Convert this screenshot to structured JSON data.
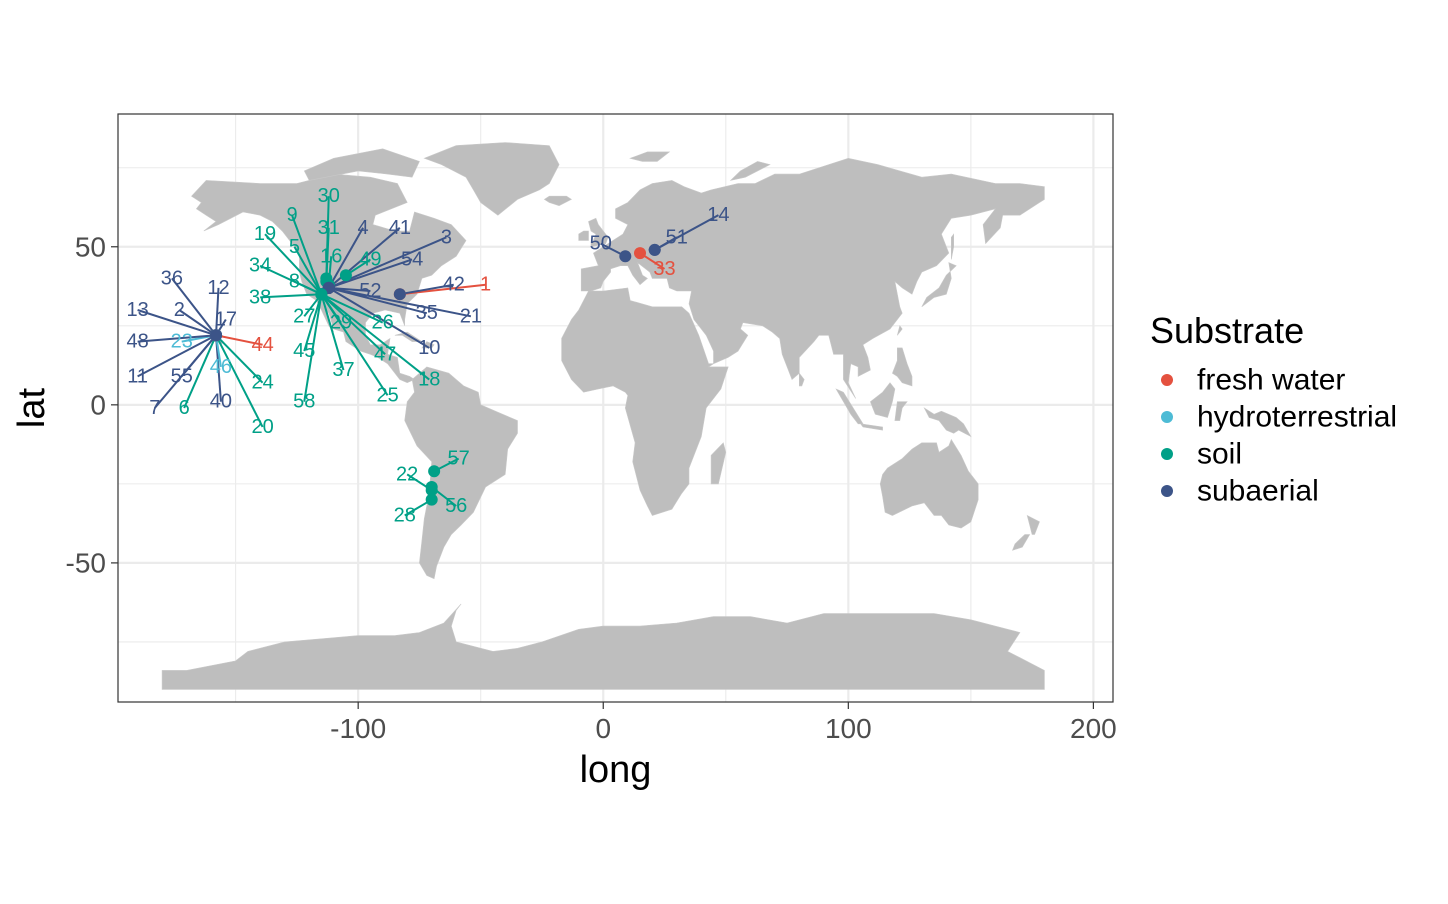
{
  "chart_data": {
    "type": "scatter",
    "title": "",
    "xlabel": "long",
    "ylabel": "lat",
    "xlim": [
      -198,
      208
    ],
    "ylim": [
      -94,
      92
    ],
    "xticks": [
      -100,
      0,
      100,
      200
    ],
    "yticks": [
      -50,
      0,
      50
    ],
    "xtick_labels": [
      "-100",
      "0",
      "100",
      "200"
    ],
    "ytick_labels": [
      "-50",
      "0",
      "50"
    ],
    "grid": true,
    "background": "world map",
    "legend": {
      "title": "Substrate",
      "position": "right",
      "entries": [
        {
          "label": "fresh water",
          "color": "#E4513F"
        },
        {
          "label": "hydroterrestrial",
          "color": "#4DBBD5"
        },
        {
          "label": "soil",
          "color": "#00A087"
        },
        {
          "label": "subaerial",
          "color": "#3C5488"
        }
      ]
    },
    "colors": {
      "fresh water": "#E4513F",
      "hydroterrestrial": "#4DBBD5",
      "soil": "#00A087",
      "subaerial": "#3C5488",
      "land": "#BEBEBE",
      "panel_border": "#333333",
      "grid": "#EBEBEB"
    },
    "points": [
      {
        "id": "1",
        "long": -83,
        "lat": 35,
        "substrate": "fresh water",
        "label_long": -48,
        "label_lat": 38
      },
      {
        "id": "2",
        "long": -158,
        "lat": 22,
        "substrate": "subaerial",
        "label_long": -173,
        "label_lat": 30
      },
      {
        "id": "3",
        "long": -112,
        "lat": 37,
        "substrate": "subaerial",
        "label_long": -64,
        "label_lat": 53
      },
      {
        "id": "4",
        "long": -112,
        "lat": 37,
        "substrate": "subaerial",
        "label_long": -98,
        "label_lat": 56
      },
      {
        "id": "5",
        "long": -115,
        "lat": 35,
        "substrate": "soil",
        "label_long": -126,
        "label_lat": 50
      },
      {
        "id": "6",
        "long": -158,
        "lat": 22,
        "substrate": "soil",
        "label_long": -171,
        "label_lat": -1
      },
      {
        "id": "7",
        "long": -158,
        "lat": 22,
        "substrate": "subaerial",
        "label_long": -183,
        "label_lat": -1
      },
      {
        "id": "8",
        "long": -115,
        "lat": 35,
        "substrate": "soil",
        "label_long": -126,
        "label_lat": 39
      },
      {
        "id": "9",
        "long": -115,
        "lat": 35,
        "substrate": "soil",
        "label_long": -127,
        "label_lat": 60
      },
      {
        "id": "10",
        "long": -112,
        "lat": 37,
        "substrate": "subaerial",
        "label_long": -71,
        "label_lat": 18
      },
      {
        "id": "11",
        "long": -158,
        "lat": 22,
        "substrate": "subaerial",
        "label_long": -190,
        "label_lat": 9
      },
      {
        "id": "12",
        "long": -158,
        "lat": 22,
        "substrate": "subaerial",
        "label_long": -157,
        "label_lat": 37
      },
      {
        "id": "13",
        "long": -158,
        "lat": 22,
        "substrate": "subaerial",
        "label_long": -190,
        "label_lat": 30
      },
      {
        "id": "14",
        "long": 21,
        "lat": 49,
        "substrate": "subaerial",
        "label_long": 47,
        "label_lat": 60
      },
      {
        "id": "16",
        "long": -112,
        "lat": 38,
        "substrate": "soil",
        "label_long": -111,
        "label_lat": 47
      },
      {
        "id": "17",
        "long": -158,
        "lat": 22,
        "substrate": "subaerial",
        "label_long": -154,
        "label_lat": 27
      },
      {
        "id": "18",
        "long": -115,
        "lat": 35,
        "substrate": "soil",
        "label_long": -71,
        "label_lat": 8
      },
      {
        "id": "19",
        "long": -115,
        "lat": 35,
        "substrate": "soil",
        "label_long": -138,
        "label_lat": 54
      },
      {
        "id": "20",
        "long": -158,
        "lat": 22,
        "substrate": "soil",
        "label_long": -139,
        "label_lat": -7
      },
      {
        "id": "21",
        "long": -112,
        "lat": 37,
        "substrate": "subaerial",
        "label_long": -54,
        "label_lat": 28
      },
      {
        "id": "22",
        "long": -70,
        "lat": -27,
        "substrate": "soil",
        "label_long": -80,
        "label_lat": -22
      },
      {
        "id": "23",
        "long": -158,
        "lat": 22,
        "substrate": "hydroterrestrial",
        "label_long": -172,
        "label_lat": 20
      },
      {
        "id": "24",
        "long": -158,
        "lat": 22,
        "substrate": "soil",
        "label_long": -139,
        "label_lat": 7
      },
      {
        "id": "25",
        "long": -115,
        "lat": 35,
        "substrate": "soil",
        "label_long": -88,
        "label_lat": 3
      },
      {
        "id": "26",
        "long": -115,
        "lat": 35,
        "substrate": "soil",
        "label_long": -90,
        "label_lat": 26
      },
      {
        "id": "27",
        "long": -115,
        "lat": 35,
        "substrate": "soil",
        "label_long": -122,
        "label_lat": 28
      },
      {
        "id": "28",
        "long": -70,
        "lat": -30,
        "substrate": "soil",
        "label_long": -81,
        "label_lat": -35
      },
      {
        "id": "29",
        "long": -115,
        "lat": 35,
        "substrate": "soil",
        "label_long": -107,
        "label_lat": 26
      },
      {
        "id": "30",
        "long": -113,
        "lat": 40,
        "substrate": "soil",
        "label_long": -112,
        "label_lat": 66
      },
      {
        "id": "31",
        "long": -113,
        "lat": 39,
        "substrate": "soil",
        "label_long": -112,
        "label_lat": 56
      },
      {
        "id": "33",
        "long": 15,
        "lat": 48,
        "substrate": "fresh water",
        "label_long": 25,
        "label_lat": 43
      },
      {
        "id": "34",
        "long": -115,
        "lat": 35,
        "substrate": "soil",
        "label_long": -140,
        "label_lat": 44
      },
      {
        "id": "35",
        "long": -112,
        "lat": 37,
        "substrate": "subaerial",
        "label_long": -72,
        "label_lat": 29
      },
      {
        "id": "36",
        "long": -158,
        "lat": 22,
        "substrate": "subaerial",
        "label_long": -176,
        "label_lat": 40
      },
      {
        "id": "37",
        "long": -115,
        "lat": 35,
        "substrate": "soil",
        "label_long": -106,
        "label_lat": 11
      },
      {
        "id": "38",
        "long": -115,
        "lat": 35,
        "substrate": "soil",
        "label_long": -140,
        "label_lat": 34
      },
      {
        "id": "40",
        "long": -158,
        "lat": 22,
        "substrate": "subaerial",
        "label_long": -156,
        "label_lat": 1
      },
      {
        "id": "41",
        "long": -112,
        "lat": 37,
        "substrate": "subaerial",
        "label_long": -83,
        "label_lat": 56
      },
      {
        "id": "42",
        "long": -83,
        "lat": 35,
        "substrate": "subaerial",
        "label_long": -61,
        "label_lat": 38
      },
      {
        "id": "44",
        "long": -158,
        "lat": 22,
        "substrate": "fresh water",
        "label_long": -139,
        "label_lat": 19
      },
      {
        "id": "45",
        "long": -115,
        "lat": 35,
        "substrate": "soil",
        "label_long": -122,
        "label_lat": 17
      },
      {
        "id": "46",
        "long": -158,
        "lat": 22,
        "substrate": "hydroterrestrial",
        "label_long": -156,
        "label_lat": 12
      },
      {
        "id": "47",
        "long": -115,
        "lat": 35,
        "substrate": "soil",
        "label_long": -89,
        "label_lat": 16
      },
      {
        "id": "48",
        "long": -158,
        "lat": 22,
        "substrate": "subaerial",
        "label_long": -190,
        "label_lat": 20
      },
      {
        "id": "49",
        "long": -105,
        "lat": 41,
        "substrate": "soil",
        "label_long": -95,
        "label_lat": 46
      },
      {
        "id": "50",
        "long": 9,
        "lat": 47,
        "substrate": "subaerial",
        "label_long": -1,
        "label_lat": 51
      },
      {
        "id": "51",
        "long": 21,
        "lat": 49,
        "substrate": "subaerial",
        "label_long": 30,
        "label_lat": 53
      },
      {
        "id": "52",
        "long": -112,
        "lat": 37,
        "substrate": "subaerial",
        "label_long": -95,
        "label_lat": 36
      },
      {
        "id": "54",
        "long": -112,
        "lat": 37,
        "substrate": "subaerial",
        "label_long": -78,
        "label_lat": 46
      },
      {
        "id": "55",
        "long": -158,
        "lat": 22,
        "substrate": "subaerial",
        "label_long": -172,
        "label_lat": 9
      },
      {
        "id": "56",
        "long": -70,
        "lat": -26,
        "substrate": "soil",
        "label_long": -60,
        "label_lat": -32
      },
      {
        "id": "57",
        "long": -69,
        "lat": -21,
        "substrate": "soil",
        "label_long": -59,
        "label_lat": -17
      },
      {
        "id": "58",
        "long": -115,
        "lat": 35,
        "substrate": "soil",
        "label_long": -122,
        "label_lat": 1
      }
    ]
  }
}
